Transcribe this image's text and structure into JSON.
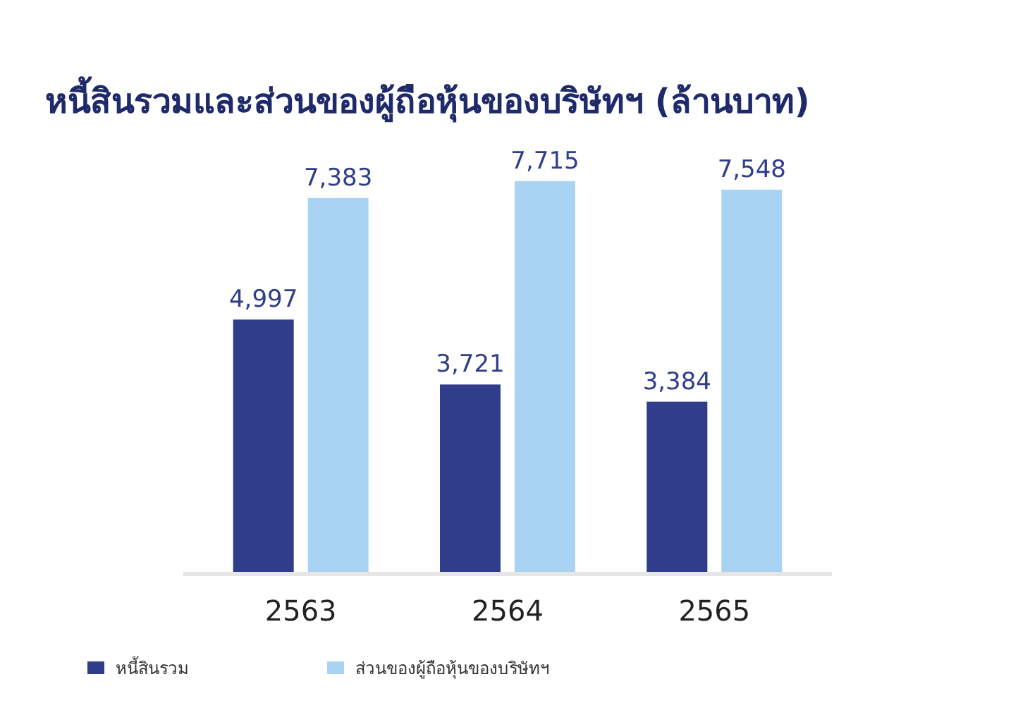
{
  "chart_data": {
    "type": "bar",
    "title": "หนี้สินรวมและส่วนของผู้ถือหุ้นของบริษัทฯ (ล้านบาท)",
    "categories": [
      "2563",
      "2564",
      "2565"
    ],
    "series": [
      {
        "name": "หนี้สินรวม",
        "color": "#2f3d8a",
        "values": [
          4997,
          3721,
          3384
        ],
        "value_labels": [
          "4,997",
          "3,721",
          "3,384"
        ]
      },
      {
        "name": "ส่วนของผู้ถือหุ้นของบริษัทฯ",
        "color": "#a8d3f3",
        "values": [
          7383,
          7715,
          7548
        ],
        "value_labels": [
          "7,383",
          "7,715",
          "7,548"
        ]
      }
    ],
    "legend": "bottom left"
  }
}
